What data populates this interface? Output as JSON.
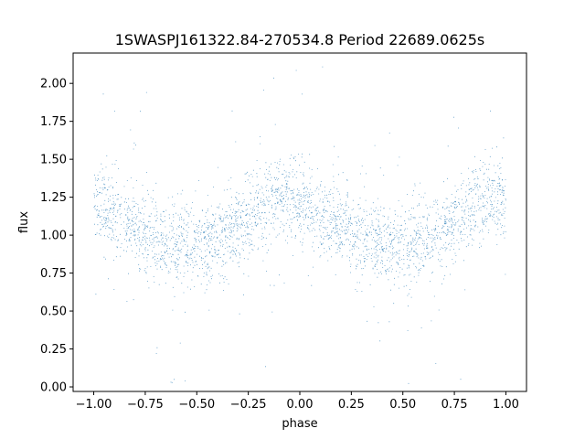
{
  "chart_data": {
    "type": "scatter",
    "title": "1SWASPJ161322.84-270534.8 Period 22689.0625s",
    "xlabel": "phase",
    "ylabel": "flux",
    "xlim": [
      -1.1,
      1.1
    ],
    "ylim": [
      -0.03,
      2.2
    ],
    "xticks": [
      -1.0,
      -0.75,
      -0.5,
      -0.25,
      0.0,
      0.25,
      0.5,
      0.75,
      1.0
    ],
    "xtick_labels": [
      "−1.00",
      "−0.75",
      "−0.50",
      "−0.25",
      "0.00",
      "0.25",
      "0.50",
      "0.75",
      "1.00"
    ],
    "yticks": [
      0.0,
      0.25,
      0.5,
      0.75,
      1.0,
      1.25,
      1.5,
      1.75,
      2.0
    ],
    "ytick_labels": [
      "0.00",
      "0.25",
      "0.50",
      "0.75",
      "1.00",
      "1.25",
      "1.50",
      "1.75",
      "2.00"
    ],
    "grid": false,
    "marker_color": "#1f77b4",
    "series": [
      {
        "name": "",
        "x_range": [
          -1.0,
          1.0
        ],
        "trend": [
          [
            -1.0,
            1.18
          ],
          [
            -0.9,
            1.12
          ],
          [
            -0.8,
            1.05
          ],
          [
            -0.7,
            0.98
          ],
          [
            -0.6,
            0.94
          ],
          [
            -0.5,
            0.94
          ],
          [
            -0.4,
            0.97
          ],
          [
            -0.3,
            1.05
          ],
          [
            -0.2,
            1.17
          ],
          [
            -0.1,
            1.25
          ],
          [
            0.0,
            1.22
          ],
          [
            0.1,
            1.12
          ],
          [
            0.2,
            1.05
          ],
          [
            0.3,
            0.99
          ],
          [
            0.4,
            0.95
          ],
          [
            0.5,
            0.93
          ],
          [
            0.6,
            0.96
          ],
          [
            0.7,
            1.04
          ],
          [
            0.8,
            1.15
          ],
          [
            0.9,
            1.24
          ],
          [
            1.0,
            1.22
          ]
        ],
        "scatter_sigma": 0.13,
        "approx_points": 12000
      }
    ]
  }
}
